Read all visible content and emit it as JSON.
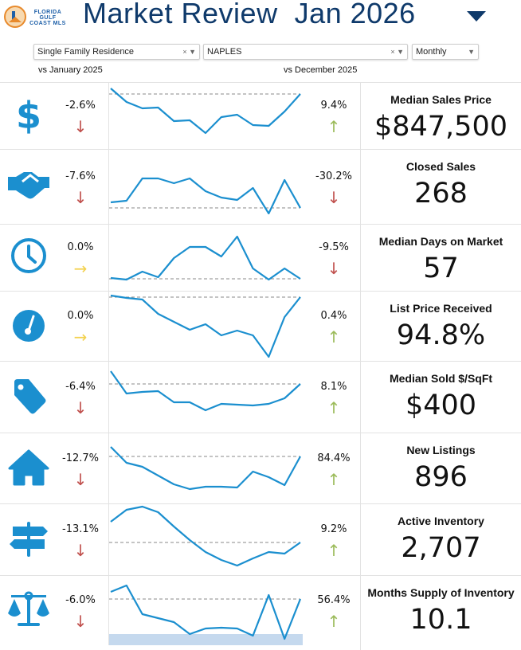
{
  "header": {
    "logo_text": "FLORIDA GULF COAST MLS",
    "title": "Market Review  Jan 2026"
  },
  "filters": {
    "property_type": "Single Family Residence",
    "area": "NAPLES",
    "period": "Monthly"
  },
  "compare": {
    "yoy_label": "vs January 2025",
    "mom_label": "vs December 2025"
  },
  "colors": {
    "accent": "#1b8fcf",
    "title": "#0f3a6b",
    "down": "#c0504d",
    "up": "#9bbb59",
    "flat": "#f3d24f",
    "band": "#c5d9ee"
  },
  "metrics": [
    {
      "icon": "dollar-icon",
      "label": "Median Sales Price",
      "value": "$847,500",
      "yoy": "-2.6%",
      "yoy_dir": "down",
      "mom": "9.4%",
      "mom_dir": "up",
      "trend": [
        80,
        63,
        55,
        56,
        39,
        40,
        24,
        44,
        47,
        34,
        33,
        51,
        73
      ],
      "reference": 73
    },
    {
      "icon": "handshake-icon",
      "label": "Closed Sales",
      "value": "268",
      "yoy": "-7.6%",
      "yoy_dir": "down",
      "mom": "-30.2%",
      "mom_dir": "down",
      "trend": [
        21,
        23,
        51,
        51,
        45,
        51,
        35,
        27,
        24,
        39,
        7,
        49,
        14
      ],
      "reference": 14
    },
    {
      "icon": "clock-icon",
      "label": "Median Days on Market",
      "value": "57",
      "yoy": "0.0%",
      "yoy_dir": "flat",
      "mom": "-9.5%",
      "mom_dir": "down",
      "trend": [
        20,
        18,
        28,
        21,
        45,
        59,
        59,
        47,
        72,
        32,
        18,
        32,
        19
      ],
      "reference": 19
    },
    {
      "icon": "gauge-icon",
      "label": "List Price Received",
      "value": "94.8%",
      "yoy": "0.0%",
      "yoy_dir": "flat",
      "mom": "0.4%",
      "mom_dir": "up",
      "trend": [
        82,
        79,
        77,
        59,
        49,
        39,
        46,
        32,
        38,
        32,
        5,
        55,
        80
      ],
      "reference": 80
    },
    {
      "icon": "price-tag-icon",
      "label": "Median Sold $/SqFt",
      "value": "$400",
      "yoy": "-6.4%",
      "yoy_dir": "down",
      "mom": "8.1%",
      "mom_dir": "up",
      "trend": [
        75,
        47,
        49,
        50,
        36,
        36,
        26,
        34,
        33,
        32,
        34,
        41,
        59
      ],
      "reference": 59
    },
    {
      "icon": "house-icon",
      "label": "New Listings",
      "value": "896",
      "yoy": "-12.7%",
      "yoy_dir": "down",
      "mom": "84.4%",
      "mom_dir": "up",
      "trend": [
        70,
        50,
        45,
        34,
        23,
        17,
        20,
        20,
        19,
        39,
        32,
        22,
        58
      ],
      "reference": 58
    },
    {
      "icon": "signpost-icon",
      "label": "Active Inventory",
      "value": "2,707",
      "yoy": "-13.1%",
      "yoy_dir": "down",
      "mom": "9.2%",
      "mom_dir": "up",
      "trend": [
        65,
        80,
        84,
        77,
        59,
        42,
        27,
        17,
        10,
        19,
        27,
        25,
        39
      ],
      "reference": 39
    },
    {
      "icon": "scales-icon",
      "label": "Months Supply of Inventory",
      "value": "10.1",
      "yoy": "-6.0%",
      "yoy_dir": "down",
      "mom": "56.4%",
      "mom_dir": "up",
      "trend": [
        67,
        75,
        39,
        34,
        29,
        14,
        21,
        22,
        21,
        12,
        63,
        8,
        58
      ],
      "reference": 58,
      "band": [
        0,
        14
      ]
    }
  ]
}
